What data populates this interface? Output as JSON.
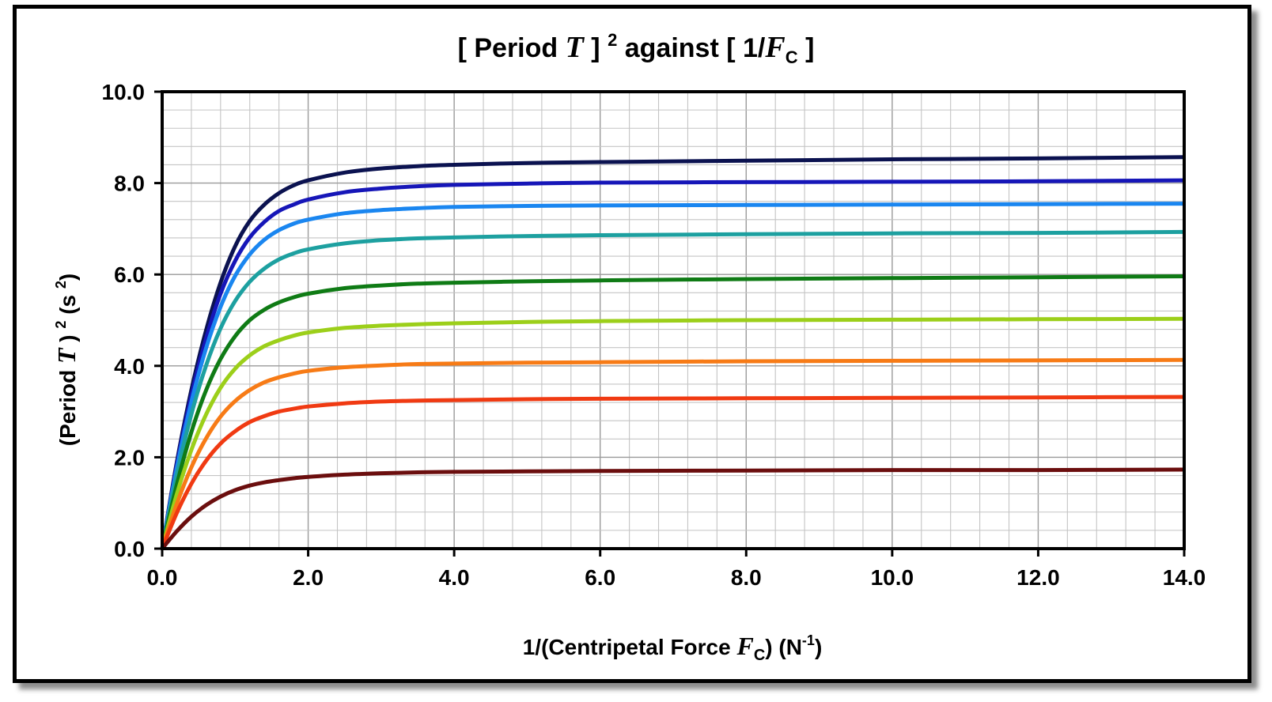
{
  "chart_data": {
    "type": "line",
    "title": {
      "pre": "[ Period ",
      "T": "T",
      "mid": " ] ",
      "sup": "2",
      "post": " against  [ 1/",
      "F": "F",
      "sub": "C",
      "end": " ]"
    },
    "xlabel": {
      "pre": "1/(Centripetal Force ",
      "F": "F",
      "sub": "C",
      "mid": ") (N",
      "sup": "-1",
      "end": ")"
    },
    "ylabel": {
      "pre": "(Period ",
      "T": "T",
      "mid": " ) ",
      "sup": "2",
      "post": " (s ",
      "sup2": "2",
      "end": ")"
    },
    "xlim": [
      0,
      14
    ],
    "ylim": [
      0,
      10
    ],
    "x_ticks": [
      "0.0",
      "2.0",
      "4.0",
      "6.0",
      "8.0",
      "10.0",
      "12.0",
      "14.0"
    ],
    "y_ticks": [
      "0.0",
      "2.0",
      "4.0",
      "6.0",
      "8.0",
      "10.0"
    ],
    "grid": true,
    "legend": "none",
    "x": [
      0,
      0.2,
      0.4,
      0.6,
      0.8,
      1.0,
      1.2,
      1.4,
      1.6,
      1.8,
      2.0,
      2.5,
      3.0,
      3.5,
      4.0,
      5.0,
      6.0,
      8.0,
      10.0,
      12.0,
      14.0
    ],
    "series": [
      {
        "color": "#0b1250",
        "values": [
          0,
          1.89,
          3.47,
          4.77,
          5.82,
          6.62,
          7.17,
          7.53,
          7.78,
          7.95,
          8.06,
          8.23,
          8.32,
          8.37,
          8.4,
          8.44,
          8.46,
          8.49,
          8.52,
          8.54,
          8.57
        ]
      },
      {
        "color": "#1616b8",
        "values": [
          0,
          1.83,
          3.35,
          4.59,
          5.58,
          6.3,
          6.81,
          7.15,
          7.39,
          7.53,
          7.64,
          7.8,
          7.88,
          7.93,
          7.96,
          7.99,
          8.01,
          8.02,
          8.03,
          8.04,
          8.06
        ]
      },
      {
        "color": "#1a86f0",
        "values": [
          0,
          1.76,
          3.21,
          4.38,
          5.29,
          5.97,
          6.44,
          6.76,
          6.97,
          7.11,
          7.2,
          7.34,
          7.41,
          7.45,
          7.48,
          7.5,
          7.51,
          7.52,
          7.53,
          7.54,
          7.55
        ]
      },
      {
        "color": "#1da0a0",
        "values": [
          0,
          1.61,
          2.94,
          4.0,
          4.82,
          5.42,
          5.84,
          6.13,
          6.33,
          6.46,
          6.55,
          6.68,
          6.75,
          6.79,
          6.81,
          6.84,
          6.86,
          6.88,
          6.9,
          6.91,
          6.93
        ]
      },
      {
        "color": "#0f7b15",
        "values": [
          0,
          1.4,
          2.55,
          3.46,
          4.15,
          4.65,
          5.0,
          5.23,
          5.39,
          5.5,
          5.58,
          5.7,
          5.76,
          5.8,
          5.82,
          5.85,
          5.87,
          5.9,
          5.92,
          5.94,
          5.96
        ]
      },
      {
        "color": "#9ccf1a",
        "values": [
          0,
          1.19,
          2.16,
          2.93,
          3.52,
          3.94,
          4.23,
          4.43,
          4.56,
          4.66,
          4.73,
          4.83,
          4.88,
          4.91,
          4.93,
          4.96,
          4.98,
          5.0,
          5.01,
          5.02,
          5.03
        ]
      },
      {
        "color": "#f77b16",
        "values": [
          0,
          0.98,
          1.78,
          2.41,
          2.89,
          3.23,
          3.47,
          3.64,
          3.75,
          3.83,
          3.89,
          3.97,
          4.01,
          4.04,
          4.05,
          4.07,
          4.08,
          4.1,
          4.11,
          4.12,
          4.13
        ]
      },
      {
        "color": "#f03a12",
        "values": [
          0,
          0.78,
          1.42,
          1.92,
          2.3,
          2.57,
          2.77,
          2.9,
          3.0,
          3.06,
          3.11,
          3.18,
          3.22,
          3.24,
          3.25,
          3.27,
          3.28,
          3.29,
          3.3,
          3.31,
          3.32
        ]
      },
      {
        "color": "#6b0e0e",
        "values": [
          0,
          0.38,
          0.7,
          0.95,
          1.14,
          1.28,
          1.38,
          1.45,
          1.5,
          1.54,
          1.57,
          1.62,
          1.65,
          1.67,
          1.68,
          1.69,
          1.7,
          1.71,
          1.72,
          1.72,
          1.73
        ]
      }
    ]
  }
}
